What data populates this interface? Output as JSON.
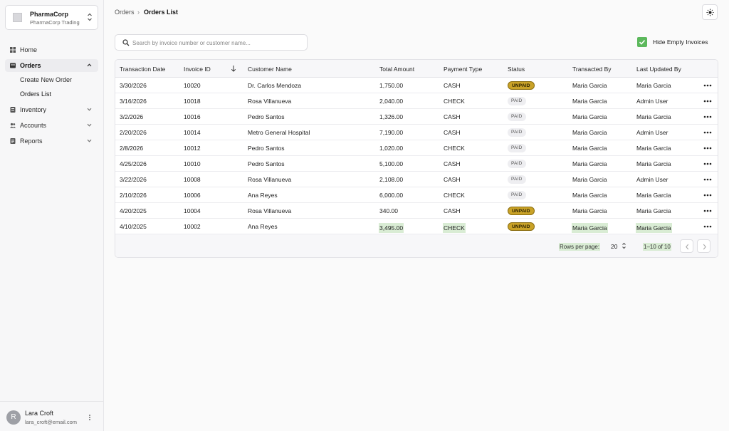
{
  "org": {
    "name": "PharmaCorp",
    "subtitle": "PharmaCorp Trading",
    "logo_icon": "org-logo-icon",
    "switch_icon": "chevron-updown-icon"
  },
  "sidebar": {
    "items": [
      {
        "label": "Home",
        "icon": "home-icon"
      },
      {
        "label": "Orders",
        "icon": "orders-icon",
        "expanded": true
      },
      {
        "label": "Inventory",
        "icon": "inventory-icon"
      },
      {
        "label": "Accounts",
        "icon": "accounts-icon"
      },
      {
        "label": "Reports",
        "icon": "reports-icon"
      }
    ],
    "orders_sub": [
      {
        "label": "Create New Order"
      },
      {
        "label": "Orders List"
      }
    ]
  },
  "user": {
    "initial": "R",
    "name": "Lara Croft",
    "email": "lara_croft@email.com",
    "menu_icon": "more-vertical-icon"
  },
  "breadcrumb": {
    "parent": "Orders",
    "separator": "›",
    "current": "Orders List"
  },
  "theme_toggle": {
    "icon": "sun-icon"
  },
  "search": {
    "placeholder": "Search by invoice number or customer name...",
    "value": ""
  },
  "filter": {
    "hide_empty_label": "Hide Empty Invoices",
    "hide_empty_checked": true
  },
  "table": {
    "columns": [
      "Transaction Date",
      "Invoice ID",
      "Customer Name",
      "Total Amount",
      "Payment Type",
      "Status",
      "Transacted By",
      "Last Updated By"
    ],
    "sort_icon": "arrow-down-icon",
    "rows": [
      [
        "3/30/2026",
        "10020",
        "Dr. Carlos Mendoza",
        "1,750.00",
        "CASH",
        "UNPAID",
        "Maria Garcia",
        "Maria Garcia"
      ],
      [
        "3/16/2026",
        "10018",
        "Rosa Villanueva",
        "2,040.00",
        "CHECK",
        "PAID",
        "Maria Garcia",
        "Admin User"
      ],
      [
        "3/2/2026",
        "10016",
        "Pedro Santos",
        "1,326.00",
        "CASH",
        "PAID",
        "Maria Garcia",
        "Maria Garcia"
      ],
      [
        "2/20/2026",
        "10014",
        "Metro General Hospital",
        "7,190.00",
        "CASH",
        "PAID",
        "Maria Garcia",
        "Admin User"
      ],
      [
        "2/8/2026",
        "10012",
        "Pedro Santos",
        "1,020.00",
        "CHECK",
        "PAID",
        "Maria Garcia",
        "Maria Garcia"
      ],
      [
        "4/25/2026",
        "10010",
        "Pedro Santos",
        "5,100.00",
        "CASH",
        "PAID",
        "Maria Garcia",
        "Maria Garcia"
      ],
      [
        "3/22/2026",
        "10008",
        "Rosa Villanueva",
        "2,108.00",
        "CASH",
        "PAID",
        "Maria Garcia",
        "Admin User"
      ],
      [
        "2/10/2026",
        "10006",
        "Ana Reyes",
        "6,000.00",
        "CHECK",
        "PAID",
        "Maria Garcia",
        "Maria Garcia"
      ],
      [
        "4/20/2025",
        "10004",
        "Rosa Villanueva",
        "340.00",
        "CASH",
        "UNPAID",
        "Maria Garcia",
        "Maria Garcia"
      ],
      [
        "4/10/2025",
        "10002",
        "Ana Reyes",
        "3,495.00",
        "CHECK",
        "UNPAID",
        "Maria Garcia",
        "Maria Garcia"
      ]
    ],
    "row_menu_icon": "more-horizontal-icon"
  },
  "pagination": {
    "rows_per_page_label": "Rows per page:",
    "rows_per_page_value": "20",
    "range": "1–10 of 10",
    "prev_icon": "chevron-left-icon",
    "next_icon": "chevron-right-icon"
  },
  "colors": {
    "unpaid": "#c9a227",
    "paid": "#eeeef1",
    "checkbox": "#5cb85c",
    "highlight": "#d9ecd4"
  }
}
